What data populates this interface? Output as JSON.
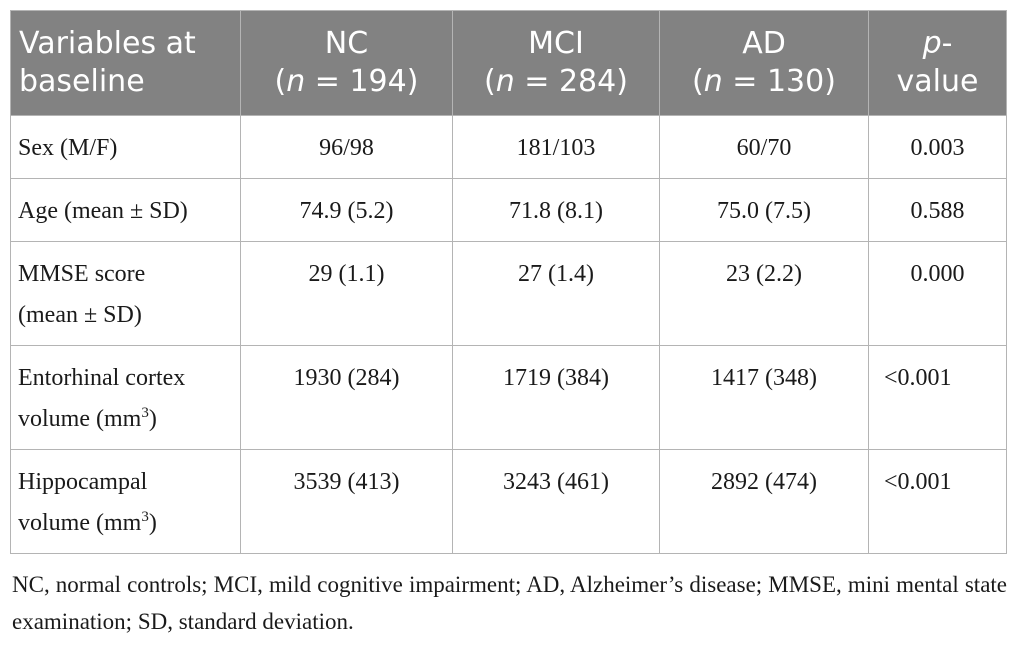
{
  "table": {
    "header": {
      "variables": [
        "Variables at",
        "baseline"
      ],
      "nc": {
        "label": "NC",
        "n_prefix": "(",
        "n_italic": "n",
        "n_rest": " = 194)"
      },
      "mci": {
        "label": "MCI",
        "n_prefix": "(",
        "n_italic": "n",
        "n_rest": " = 284)"
      },
      "ad": {
        "label": "AD",
        "n_prefix": "(",
        "n_italic": "n",
        "n_rest": " = 130)"
      },
      "pvalue": {
        "italic": "p",
        "dash": "-",
        "line2": "value"
      }
    },
    "rows": [
      {
        "variable": "Sex (M/F)",
        "nc": "96/98",
        "mci": "181/103",
        "ad": "60/70",
        "p": "0.003"
      },
      {
        "variable": "Age (mean ± SD)",
        "nc": "74.9 (5.2)",
        "mci": "71.8 (8.1)",
        "ad": "75.0 (7.5)",
        "p": "0.588"
      },
      {
        "variable_line1": "MMSE score",
        "variable_line2": "(mean ± SD)",
        "nc": "29 (1.1)",
        "mci": "27 (1.4)",
        "ad": "23 (2.2)",
        "p": "0.000"
      },
      {
        "variable_line1": "Entorhinal cortex",
        "variable_line2": "volume (mm",
        "superscript": "3",
        "variable_close": ")",
        "nc": "1930 (284)",
        "mci": "1719 (384)",
        "ad": "1417 (348)",
        "p": "<0.001"
      },
      {
        "variable_line1": "Hippocampal",
        "variable_line2": "volume (mm",
        "superscript": "3",
        "variable_close": ")",
        "nc": "3539 (413)",
        "mci": "3243 (461)",
        "ad": "2892 (474)",
        "p": "<0.001"
      }
    ]
  },
  "footnote": "NC, normal controls; MCI, mild cognitive impairment; AD, Alzheimer’s disease; MMSE, mini mental state examination; SD, standard deviation."
}
